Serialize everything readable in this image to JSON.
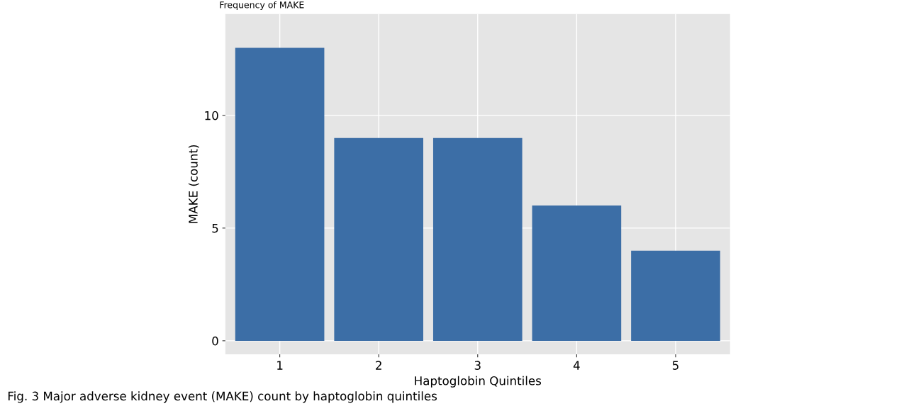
{
  "chart_data": {
    "type": "bar",
    "title": "Frequency of MAKE",
    "xlabel": "Haptoglobin Quintiles",
    "ylabel": "MAKE (count)",
    "categories": [
      "1",
      "2",
      "3",
      "4",
      "5"
    ],
    "values": [
      13,
      9,
      9,
      6,
      4
    ],
    "color": "#3c6ea6",
    "ylim": [
      -0.6,
      14.5
    ],
    "yticks": [
      0,
      5,
      10
    ],
    "grid": true,
    "annotations": [
      "Fig. 3 Major adverse kidney event (MAKE) count by haptoglobin quintiles"
    ]
  }
}
